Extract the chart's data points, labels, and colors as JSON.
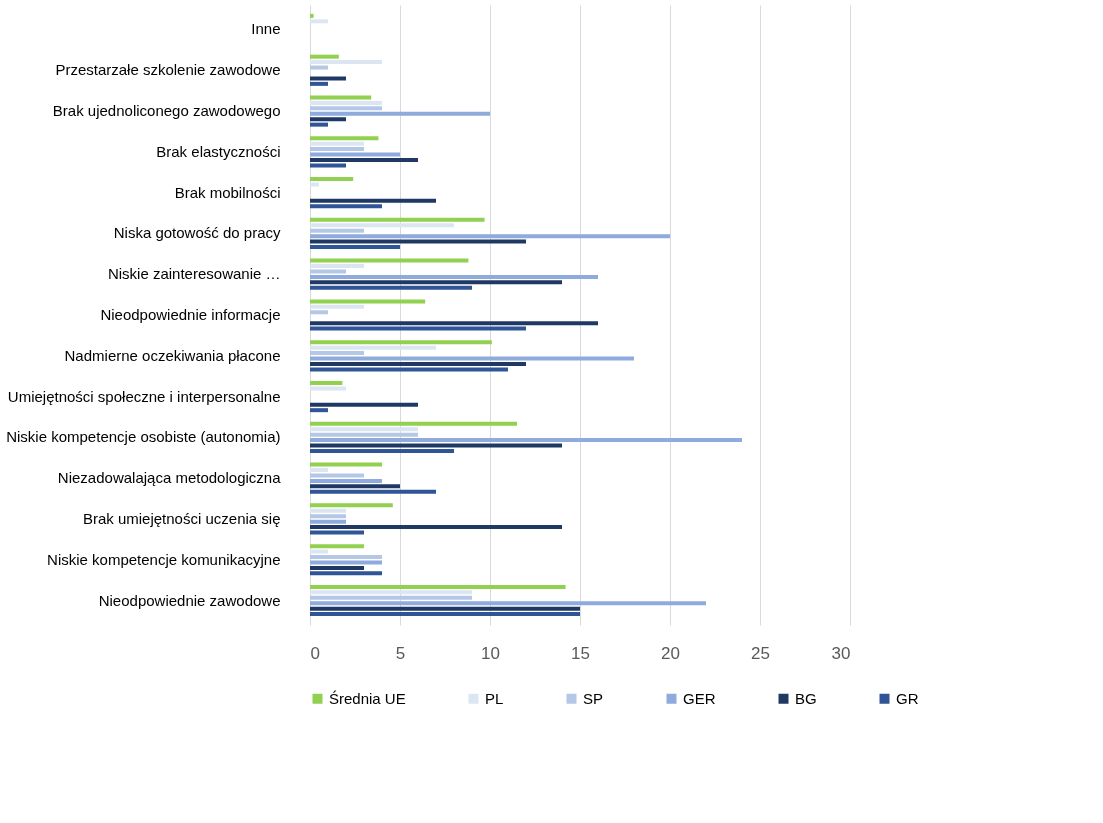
{
  "chart_data": {
    "type": "bar",
    "orientation": "horizontal",
    "categories": [
      "Inne",
      "Przestarzałe szkolenie zawodowe",
      "Brak ujednoliconego zawodowego",
      "Brak elastyczności",
      "Brak mobilności",
      "Niska gotowość do pracy",
      "Niskie zainteresowanie …",
      "Nieodpowiednie informacje",
      "Nadmierne oczekiwania płacone",
      "Umiejętności społeczne i interpersonalne",
      "Niskie kompetencje osobiste (autonomia)",
      "Niezadowalająca metodologiczna",
      "Brak umiejętności uczenia się",
      "Niskie kompetencje komunikacyjne",
      "Nieodpowiednie zawodowe"
    ],
    "series": [
      {
        "name": "Średnia UE",
        "color": "#92d050",
        "values": [
          0.2,
          1.6,
          3.4,
          3.8,
          2.4,
          9.7,
          8.8,
          6.4,
          10.1,
          1.8,
          11.5,
          4,
          4.6,
          3,
          14.2
        ]
      },
      {
        "name": "PL",
        "color": "#dce6f2",
        "values": [
          1,
          4,
          4,
          3,
          0.5,
          8,
          3,
          3,
          7,
          2,
          6,
          1,
          2,
          1,
          9
        ]
      },
      {
        "name": "SP",
        "color": "#b4c7e7",
        "values": [
          0,
          1,
          4,
          3,
          0,
          3,
          2,
          1,
          3,
          0,
          6,
          3,
          2,
          4,
          9
        ]
      },
      {
        "name": "GER",
        "color": "#8faadc",
        "values": [
          0,
          0,
          10,
          5,
          0,
          20,
          16,
          0,
          18,
          0,
          24,
          4,
          2,
          4,
          22
        ]
      },
      {
        "name": "BG",
        "color": "#203864",
        "values": [
          0,
          2,
          2,
          6,
          7,
          12,
          14,
          16,
          12,
          6,
          14,
          5,
          14,
          3,
          15
        ]
      },
      {
        "name": "GR",
        "color": "#2f5597",
        "values": [
          0,
          1,
          1,
          2,
          4,
          5,
          9,
          12,
          11,
          1,
          8,
          7,
          3,
          4,
          15
        ]
      }
    ],
    "xlim": [
      0,
      30
    ],
    "xticks": [
      0,
      5,
      10,
      15,
      20,
      25,
      30
    ],
    "grid": "x",
    "legend": "bottom"
  }
}
